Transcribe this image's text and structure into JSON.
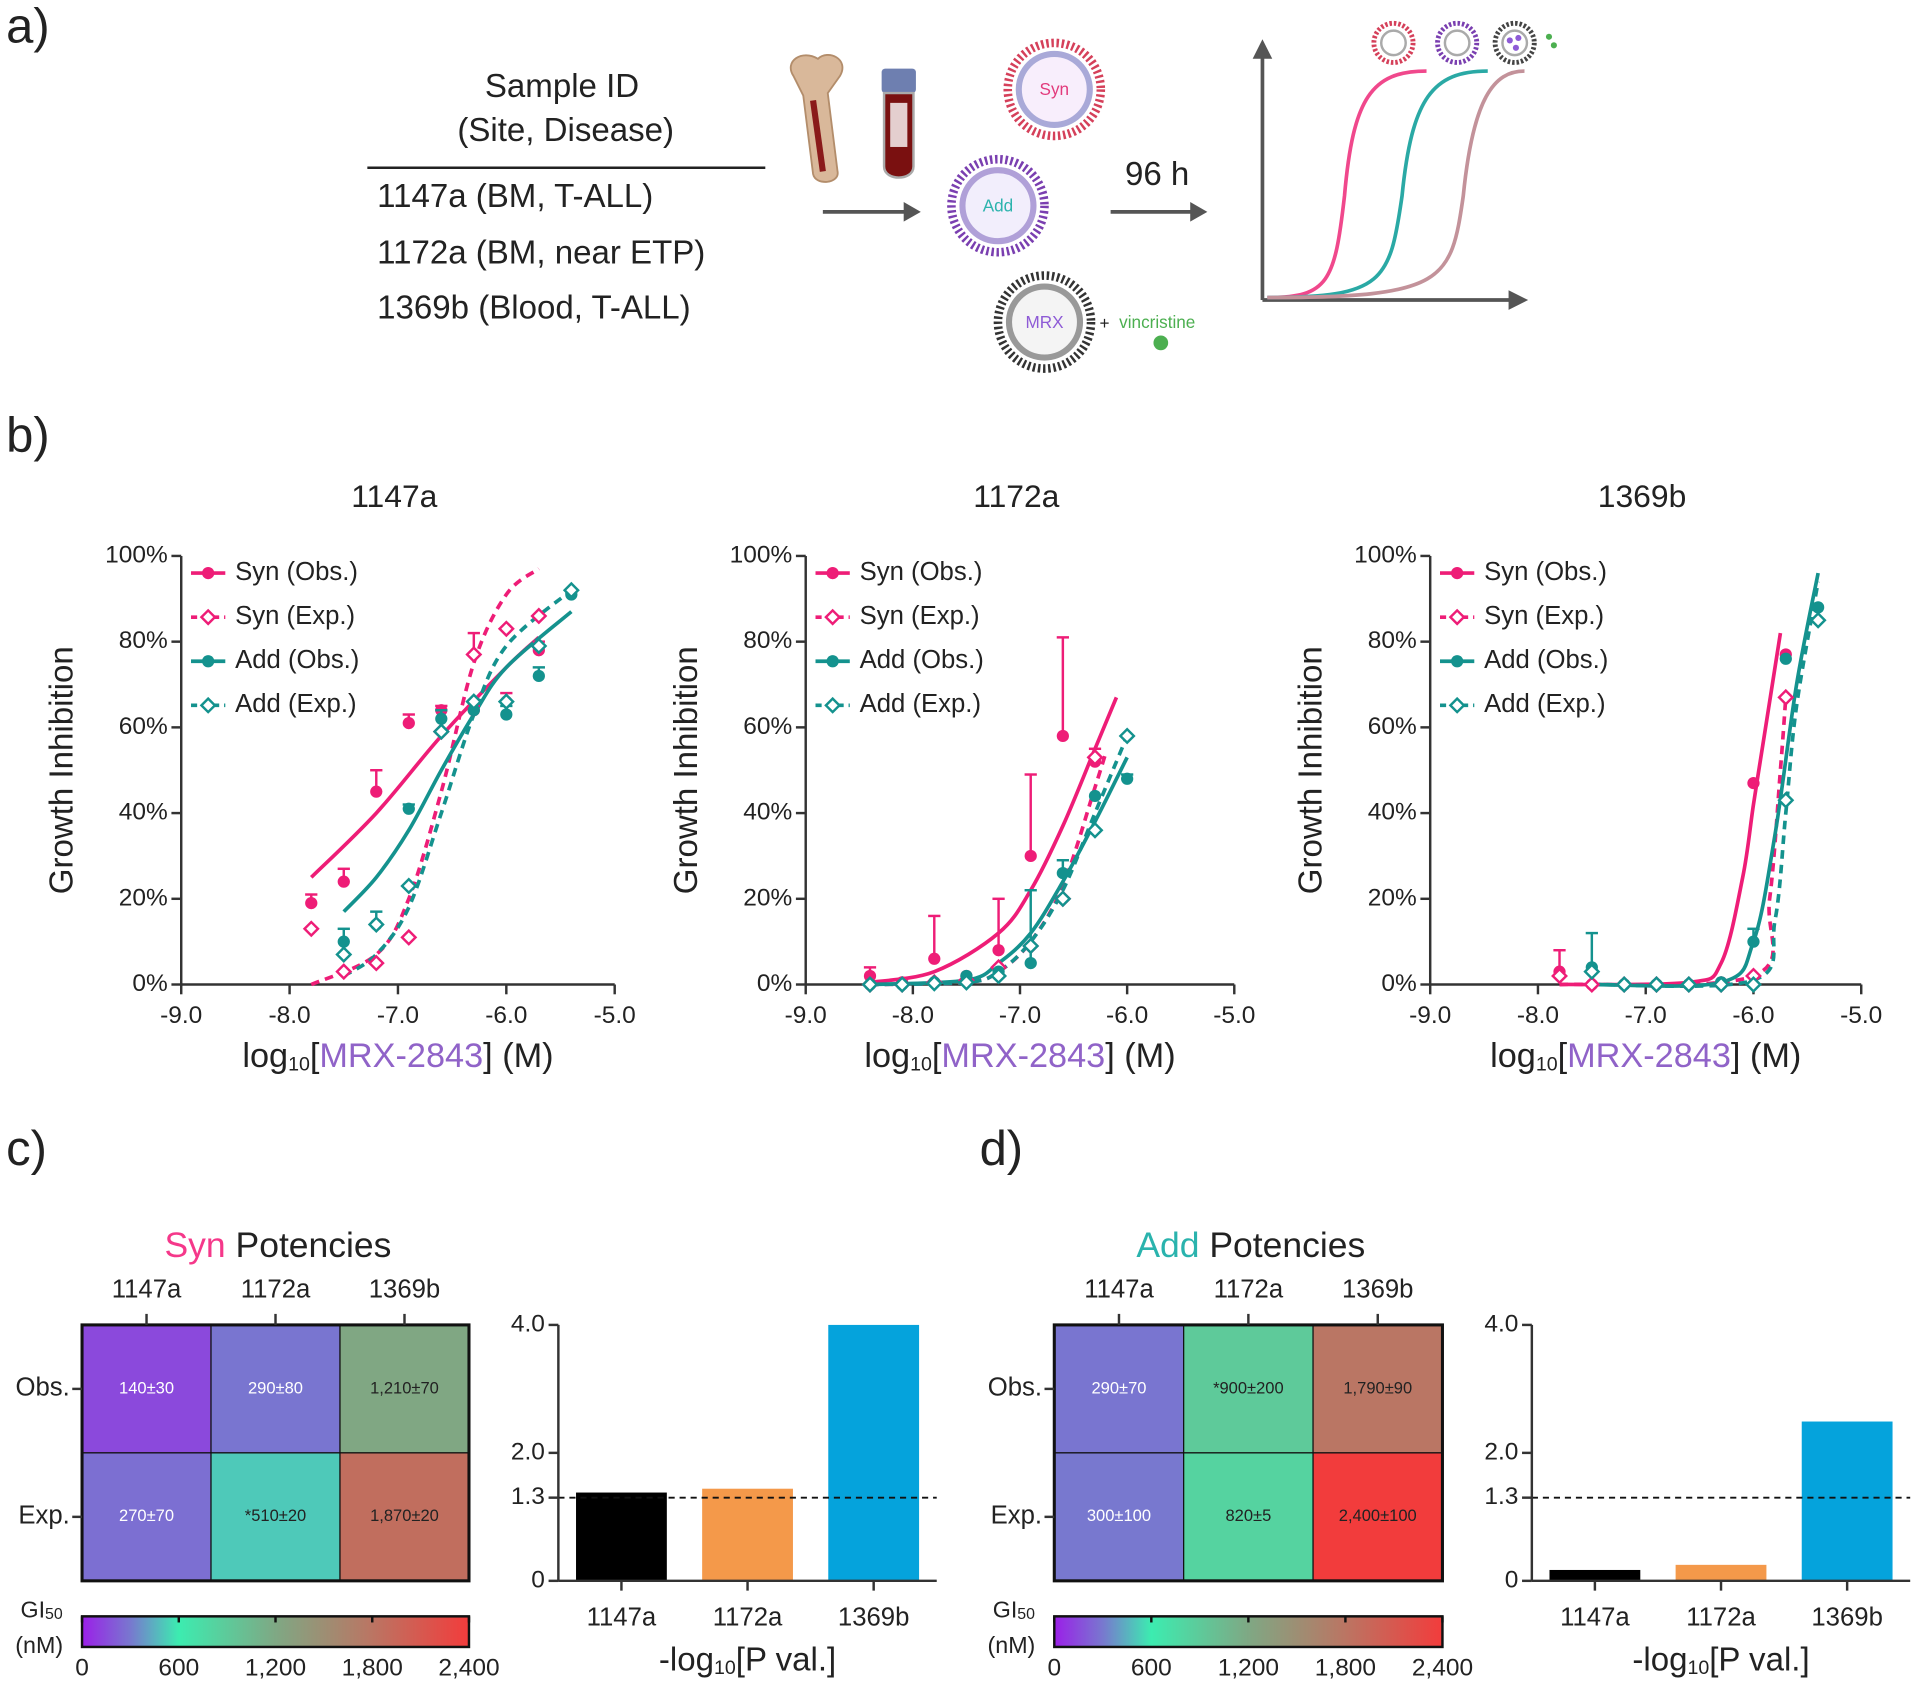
{
  "panel_labels": [
    "a)",
    "b)",
    "c)",
    "d)"
  ],
  "diagram": {
    "header": [
      "Sample ID",
      "(Site, Disease)"
    ],
    "samples": [
      "1147a (BM, T-ALL)",
      "1172a (BM, near ETP)",
      "1369b (Blood, T-ALL)"
    ],
    "time": "96 h",
    "liposomes": [
      "Syn",
      "Add",
      "MRX"
    ],
    "plus": "+",
    "drug": "vincristine"
  },
  "chart_data": [
    {
      "type": "line",
      "title": "1147a",
      "ylabel": "Growth Inhibition",
      "xlabel": [
        "log",
        "10",
        "[",
        "MRX-2843",
        "] (M)"
      ],
      "xlabel_accent": "#9063c8",
      "xlim": [
        -9,
        -5
      ],
      "xticks": [
        {
          "value": -9,
          "label": "-9.0"
        },
        {
          "value": -8,
          "label": "-8.0"
        },
        {
          "value": -7,
          "label": "-7.0"
        },
        {
          "value": -6,
          "label": "-6.0"
        },
        {
          "value": -5,
          "label": "-5.0"
        }
      ],
      "ylim": [
        0,
        100
      ],
      "yticks": [
        {
          "value": 0,
          "label": "0%"
        },
        {
          "value": 20,
          "label": "20%"
        },
        {
          "value": 40,
          "label": "40%"
        },
        {
          "value": 60,
          "label": "60%"
        },
        {
          "value": 80,
          "label": "80%"
        },
        {
          "value": 100,
          "label": "100%"
        }
      ],
      "legend": "top-left",
      "series": [
        {
          "name": "Syn (Obs.)",
          "color": "#ee1d77",
          "marker": "filled",
          "dashed": false,
          "x": [
            -7.8,
            -7.5,
            -7.2,
            -6.9,
            -6.6,
            -6.3,
            -6.0,
            -5.7
          ],
          "values": [
            19,
            24,
            45,
            61,
            64,
            64,
            66,
            78
          ],
          "errors": [
            2,
            3,
            5,
            2,
            1,
            1,
            2,
            2
          ],
          "fit": {
            "x": [
              -7.8,
              -7.2,
              -6.6,
              -6.0,
              -5.7
            ],
            "values": [
              25,
              40,
              58,
              74,
              81
            ]
          }
        },
        {
          "name": "Syn (Exp.)",
          "color": "#ee1d77",
          "marker": "open-diamond",
          "dashed": true,
          "x": [
            -7.8,
            -7.5,
            -7.2,
            -6.9,
            -6.6,
            -6.3,
            -6.0,
            -5.7
          ],
          "values": [
            13,
            3,
            5,
            11,
            59,
            77,
            83,
            86
          ],
          "errors": [
            null,
            null,
            null,
            null,
            null,
            5,
            null,
            null
          ],
          "fit": {
            "x": [
              -7.8,
              -7.2,
              -6.9,
              -6.6,
              -6.3,
              -6.0,
              -5.7
            ],
            "values": [
              0,
              7,
              20,
              45,
              75,
              91,
              97
            ]
          }
        },
        {
          "name": "Add (Obs.)",
          "color": "#14928e",
          "marker": "filled",
          "dashed": false,
          "x": [
            -7.5,
            -7.2,
            -6.9,
            -6.6,
            -6.3,
            -6.0,
            -5.7,
            -5.4
          ],
          "values": [
            10,
            14,
            41,
            62,
            64,
            63,
            72,
            91
          ],
          "errors": [
            3,
            3,
            1,
            2,
            2,
            2,
            2,
            1
          ],
          "fit": {
            "x": [
              -7.5,
              -7.2,
              -6.9,
              -6.6,
              -6.3,
              -6.0,
              -5.4
            ],
            "values": [
              17,
              25,
              36,
              50,
              63,
              74,
              87
            ]
          }
        },
        {
          "name": "Add (Exp.)",
          "color": "#14928e",
          "marker": "open-diamond",
          "dashed": true,
          "x": [
            -7.5,
            -7.2,
            -6.9,
            -6.6,
            -6.3,
            -6.0,
            -5.7,
            -5.4
          ],
          "values": [
            7,
            14,
            23,
            59,
            66,
            66,
            79,
            92
          ],
          "fit": {
            "x": [
              -7.5,
              -7.2,
              -6.9,
              -6.6,
              -6.3,
              -6.0,
              -5.4
            ],
            "values": [
              2,
              7,
              18,
              40,
              63,
              79,
              92
            ]
          }
        }
      ]
    },
    {
      "type": "line",
      "title": "1172a",
      "ylabel": "Growth Inhibition",
      "xlabel": [
        "log",
        "10",
        "[",
        "MRX-2843",
        "] (M)"
      ],
      "xlabel_accent": "#9063c8",
      "xlim": [
        -9,
        -5
      ],
      "xticks": [
        {
          "value": -9,
          "label": "-9.0"
        },
        {
          "value": -8,
          "label": "-8.0"
        },
        {
          "value": -7,
          "label": "-7.0"
        },
        {
          "value": -6,
          "label": "-6.0"
        },
        {
          "value": -5,
          "label": "-5.0"
        }
      ],
      "ylim": [
        0,
        100
      ],
      "yticks": [
        {
          "value": 0,
          "label": "0%"
        },
        {
          "value": 20,
          "label": "20%"
        },
        {
          "value": 40,
          "label": "40%"
        },
        {
          "value": 60,
          "label": "60%"
        },
        {
          "value": 80,
          "label": "80%"
        },
        {
          "value": 100,
          "label": "100%"
        }
      ],
      "legend": "top-left",
      "series": [
        {
          "name": "Syn (Obs.)",
          "color": "#ee1d77",
          "marker": "filled",
          "dashed": false,
          "x": [
            -8.4,
            -8.1,
            -7.8,
            -7.5,
            -7.2,
            -6.9,
            -6.6,
            -6.3
          ],
          "values": [
            2,
            0.5,
            6,
            2,
            8,
            30,
            58,
            52
          ],
          "errors": [
            2,
            null,
            10,
            null,
            12,
            19,
            23,
            3
          ],
          "fit": {
            "x": [
              -8.4,
              -7.8,
              -7.2,
              -6.9,
              -6.6,
              -6.3,
              -6.1
            ],
            "values": [
              0.5,
              3,
              12,
              22,
              37,
              55,
              67
            ]
          }
        },
        {
          "name": "Syn (Exp.)",
          "color": "#ee1d77",
          "marker": "open-diamond",
          "dashed": true,
          "x": [
            -8.4,
            -8.1,
            -7.8,
            -7.5,
            -7.2,
            -6.9,
            -6.6,
            -6.3
          ],
          "values": [
            0,
            0,
            0.5,
            1,
            4,
            9,
            20,
            53
          ],
          "fit": {
            "x": [
              -8.4,
              -7.5,
              -7.2,
              -6.9,
              -6.6,
              -6.3,
              -6.2
            ],
            "values": [
              0,
              0.5,
              3,
              10,
              23,
              46,
              54
            ]
          }
        },
        {
          "name": "Add (Obs.)",
          "color": "#14928e",
          "marker": "filled",
          "dashed": false,
          "x": [
            -8.4,
            -8.1,
            -7.8,
            -7.5,
            -7.2,
            -6.9,
            -6.6,
            -6.3,
            -6.0
          ],
          "values": [
            0,
            0,
            0.5,
            2,
            3,
            5,
            26,
            44,
            48
          ],
          "errors": [
            null,
            null,
            null,
            null,
            null,
            17,
            3,
            null,
            1
          ],
          "fit": {
            "x": [
              -8.4,
              -7.5,
              -7.2,
              -6.9,
              -6.6,
              -6.3,
              -6.0
            ],
            "values": [
              0,
              1,
              5,
              12,
              24,
              38,
              53
            ]
          }
        },
        {
          "name": "Add (Exp.)",
          "color": "#14928e",
          "marker": "open-diamond",
          "dashed": true,
          "x": [
            -8.4,
            -8.1,
            -7.8,
            -7.5,
            -7.2,
            -6.9,
            -6.6,
            -6.3,
            -6.0
          ],
          "values": [
            0,
            0,
            0.3,
            0.5,
            2,
            9,
            20,
            36,
            58
          ],
          "fit": {
            "x": [
              -8.4,
              -7.5,
              -7.2,
              -6.9,
              -6.6,
              -6.3,
              -6.0
            ],
            "values": [
              0,
              0.5,
              3,
              10,
              22,
              40,
              58
            ]
          }
        }
      ]
    },
    {
      "type": "line",
      "title": "1369b",
      "ylabel": "Growth Inhibition",
      "xlabel": [
        "log",
        "10",
        "[",
        "MRX-2843",
        "] (M)"
      ],
      "xlabel_accent": "#9063c8",
      "xlim": [
        -9,
        -5
      ],
      "xticks": [
        {
          "value": -9,
          "label": "-9.0"
        },
        {
          "value": -8,
          "label": "-8.0"
        },
        {
          "value": -7,
          "label": "-7.0"
        },
        {
          "value": -6,
          "label": "-6.0"
        },
        {
          "value": -5,
          "label": "-5.0"
        }
      ],
      "ylim": [
        0,
        100
      ],
      "yticks": [
        {
          "value": 0,
          "label": "0%"
        },
        {
          "value": 20,
          "label": "20%"
        },
        {
          "value": 40,
          "label": "40%"
        },
        {
          "value": 60,
          "label": "60%"
        },
        {
          "value": 80,
          "label": "80%"
        },
        {
          "value": 100,
          "label": "100%"
        }
      ],
      "legend": "top-left",
      "series": [
        {
          "name": "Syn (Obs.)",
          "color": "#ee1d77",
          "marker": "filled",
          "dashed": false,
          "x": [
            -7.8,
            -7.5,
            -7.2,
            -6.9,
            -6.6,
            -6.3,
            -6.0,
            -5.7
          ],
          "values": [
            3,
            0,
            0,
            0,
            0,
            0.5,
            47,
            77
          ],
          "errors": [
            5,
            null,
            null,
            null,
            null,
            null,
            null,
            null
          ],
          "fit": {
            "x": [
              -7.8,
              -6.6,
              -6.3,
              -6.1,
              -6.0,
              -5.9,
              -5.75
            ],
            "values": [
              0,
              0.5,
              5,
              25,
              42,
              58,
              82
            ]
          }
        },
        {
          "name": "Syn (Exp.)",
          "color": "#ee1d77",
          "marker": "open-diamond",
          "dashed": true,
          "x": [
            -7.8,
            -7.5,
            -7.2,
            -6.9,
            -6.6,
            -6.3,
            -6.0,
            -5.7
          ],
          "values": [
            2,
            0,
            0,
            0,
            0,
            0,
            2,
            67
          ],
          "fit": {
            "x": [
              -7.8,
              -6.0,
              -5.85,
              -5.75,
              -5.7
            ],
            "values": [
              0,
              2,
              20,
              50,
              67
            ]
          }
        },
        {
          "name": "Add (Obs.)",
          "color": "#14928e",
          "marker": "filled",
          "dashed": false,
          "x": [
            -7.5,
            -7.2,
            -6.9,
            -6.6,
            -6.3,
            -6.0,
            -5.7,
            -5.4
          ],
          "values": [
            4,
            0,
            0,
            0,
            0.5,
            10,
            76,
            88
          ],
          "errors": [
            8,
            null,
            null,
            null,
            null,
            3,
            null,
            null
          ],
          "fit": {
            "x": [
              -7.5,
              -6.3,
              -6.0,
              -5.8,
              -5.6,
              -5.4
            ],
            "values": [
              0,
              0.5,
              10,
              35,
              70,
              96
            ]
          }
        },
        {
          "name": "Add (Exp.)",
          "color": "#14928e",
          "marker": "open-diamond",
          "dashed": true,
          "x": [
            -7.5,
            -7.2,
            -6.9,
            -6.6,
            -6.3,
            -6.0,
            -5.7,
            -5.4
          ],
          "values": [
            3,
            0,
            0,
            0,
            0,
            0,
            43,
            85
          ],
          "fit": {
            "x": [
              -7.5,
              -6.0,
              -5.8,
              -5.7,
              -5.6,
              -5.4
            ],
            "values": [
              0,
              1,
              15,
              40,
              65,
              94
            ]
          }
        }
      ]
    },
    {
      "type": "heatmap",
      "title": [
        "Syn",
        " Potencies"
      ],
      "title_accent": "#f5388a",
      "columns": [
        "1147a",
        "1172a",
        "1369b"
      ],
      "rows": [
        "Obs.",
        "Exp."
      ],
      "values": [
        [
          140,
          290,
          1210
        ],
        [
          270,
          510,
          1870
        ]
      ],
      "value_labels": [
        [
          "140±30",
          "290±80",
          "1,210±70"
        ],
        [
          "270±70",
          "*510±20",
          "1,870±20"
        ]
      ],
      "colorbar_label": [
        "GI",
        "50",
        "(nM)"
      ],
      "zlim": [
        0,
        2400
      ],
      "colorbar_ticks": [
        0,
        600,
        {
          "value": 1200,
          "label": "1,200"
        },
        {
          "value": 1800,
          "label": "1,800"
        },
        {
          "value": 2400,
          "label": "2,400"
        }
      ],
      "colormap": [
        [
          0,
          "#9b1fe8"
        ],
        [
          300,
          "#7878cf"
        ],
        [
          600,
          "#3cecb0"
        ],
        [
          1200,
          "#7fa884"
        ],
        [
          1800,
          "#bb7563"
        ],
        [
          2400,
          "#f23c3c"
        ]
      ]
    },
    {
      "type": "bar",
      "categories": [
        "1147a",
        "1172a",
        "1369b"
      ],
      "values": [
        1.38,
        1.44,
        4.0
      ],
      "colors": [
        "#000000",
        "#f4994a",
        "#05a3dc"
      ],
      "xlabel": [
        "-log",
        "10",
        "[P val.]"
      ],
      "ylim": [
        0,
        4
      ],
      "yticks": [
        0,
        1.3,
        {
          "value": 2,
          "label": "2.0"
        },
        {
          "value": 4,
          "label": "4.0"
        }
      ],
      "threshold": 1.3
    },
    {
      "type": "heatmap",
      "title": [
        "Add",
        " Potencies"
      ],
      "title_accent": "#2ab3ad",
      "columns": [
        "1147a",
        "1172a",
        "1369b"
      ],
      "rows": [
        "Obs.",
        "Exp."
      ],
      "values": [
        [
          290,
          900,
          1790
        ],
        [
          300,
          820,
          2400
        ]
      ],
      "value_labels": [
        [
          "290±70",
          "*900±200",
          "1,790±90"
        ],
        [
          "300±100",
          "820±5",
          "2,400±100"
        ]
      ],
      "colorbar_label": [
        "GI",
        "50",
        "(nM)"
      ],
      "zlim": [
        0,
        2400
      ],
      "colorbar_ticks": [
        0,
        600,
        {
          "value": 1200,
          "label": "1,200"
        },
        {
          "value": 1800,
          "label": "1,800"
        },
        {
          "value": 2400,
          "label": "2,400"
        }
      ],
      "colormap": [
        [
          0,
          "#9b1fe8"
        ],
        [
          300,
          "#7878cf"
        ],
        [
          600,
          "#3cecb0"
        ],
        [
          1200,
          "#7fa884"
        ],
        [
          1800,
          "#bb7563"
        ],
        [
          2400,
          "#f23c3c"
        ]
      ]
    },
    {
      "type": "bar",
      "categories": [
        "1147a",
        "1172a",
        "1369b"
      ],
      "values": [
        0.17,
        0.25,
        2.49
      ],
      "colors": [
        "#000000",
        "#f4994a",
        "#05a3dc"
      ],
      "xlabel": [
        "-log",
        "10",
        "[P val.]"
      ],
      "ylim": [
        0,
        4
      ],
      "yticks": [
        0,
        1.3,
        {
          "value": 2,
          "label": "2.0"
        },
        {
          "value": 4,
          "label": "4.0"
        }
      ],
      "threshold": 1.3
    }
  ]
}
